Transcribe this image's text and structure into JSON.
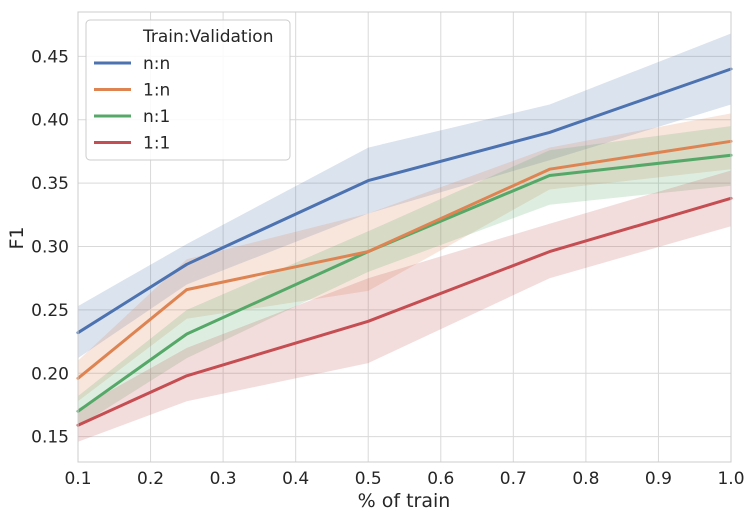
{
  "chart_data": {
    "type": "line",
    "xlabel": "% of train",
    "ylabel": "F1",
    "xlim": [
      0.1,
      1.0
    ],
    "ylim": [
      0.13,
      0.485
    ],
    "xticks": [
      0.1,
      0.2,
      0.3,
      0.4,
      0.5,
      0.6,
      0.7,
      0.8,
      0.9,
      1.0
    ],
    "xtick_labels": [
      "0.1",
      "0.2",
      "0.3",
      "0.4",
      "0.5",
      "0.6",
      "0.7",
      "0.8",
      "0.9",
      "1.0"
    ],
    "yticks": [
      0.15,
      0.2,
      0.25,
      0.3,
      0.35,
      0.4,
      0.45
    ],
    "ytick_labels": [
      "0.15",
      "0.20",
      "0.25",
      "0.30",
      "0.35",
      "0.40",
      "0.45"
    ],
    "grid": true,
    "legend": {
      "title": "Train:Validation",
      "position": "top-left"
    },
    "x": [
      0.1,
      0.25,
      0.5,
      0.75,
      1.0
    ],
    "series": [
      {
        "name": "n:n",
        "color": "#4c72b0",
        "values": [
          0.232,
          0.286,
          0.352,
          0.39,
          0.44
        ],
        "lower": [
          0.212,
          0.27,
          0.326,
          0.368,
          0.412
        ],
        "upper": [
          0.253,
          0.302,
          0.378,
          0.412,
          0.468
        ]
      },
      {
        "name": "1:n",
        "color": "#dd8452",
        "values": [
          0.196,
          0.266,
          0.296,
          0.361,
          0.383
        ],
        "lower": [
          0.178,
          0.243,
          0.265,
          0.345,
          0.361
        ],
        "upper": [
          0.21,
          0.29,
          0.326,
          0.378,
          0.405
        ]
      },
      {
        "name": "n:1",
        "color": "#55a868",
        "values": [
          0.17,
          0.231,
          0.296,
          0.356,
          0.372
        ],
        "lower": [
          0.158,
          0.212,
          0.28,
          0.333,
          0.348
        ],
        "upper": [
          0.182,
          0.25,
          0.312,
          0.376,
          0.395
        ]
      },
      {
        "name": "1:1",
        "color": "#c44e52",
        "values": [
          0.159,
          0.198,
          0.241,
          0.296,
          0.338
        ],
        "lower": [
          0.146,
          0.178,
          0.208,
          0.275,
          0.316
        ],
        "upper": [
          0.172,
          0.22,
          0.275,
          0.318,
          0.36
        ]
      }
    ]
  }
}
